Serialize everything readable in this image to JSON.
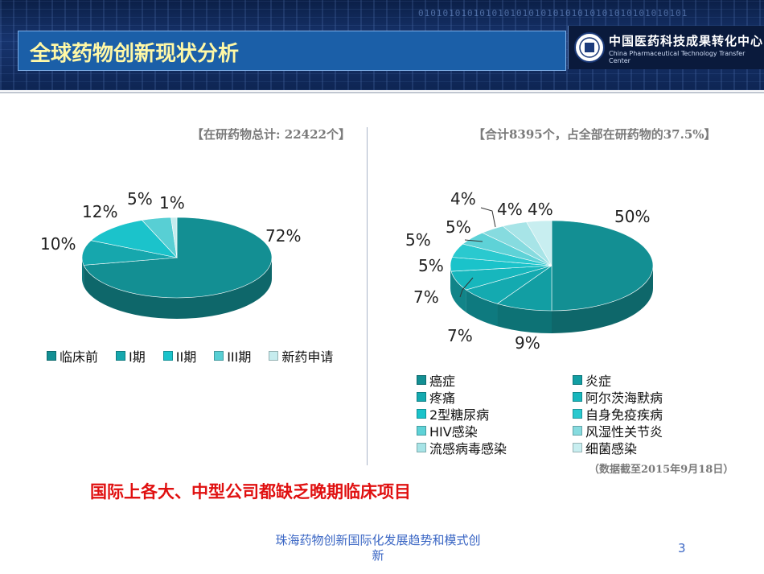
{
  "header": {
    "title": "全球药物创新现状分析",
    "logo_cn": "中国医药科技成果转化中心",
    "logo_en": "China Pharmaceutical Technology Transfer Center",
    "binary": "01010101010101010101010101010101010101010101"
  },
  "left": {
    "caption": "【在研药物总计: 22422个】",
    "chart_data": {
      "type": "pie",
      "categories": [
        "临床前",
        "I期",
        "II期",
        "III期",
        "新药申请"
      ],
      "values": [
        72,
        10,
        12,
        5,
        1
      ],
      "data_labels": [
        "72%",
        "10%",
        "12%",
        "5%",
        "1%"
      ],
      "legend_placement": "bottom"
    }
  },
  "right": {
    "caption": "【合计8395个，占全部在研药物的37.5%】",
    "chart_data": {
      "type": "pie",
      "categories": [
        "癌症",
        "炎症",
        "疼痛",
        "阿尔茨海默病",
        "2型糖尿病",
        "自身免疫疾病",
        "HIV感染",
        "风湿性关节炎",
        "流感病毒感染",
        "细菌感染"
      ],
      "values": [
        50,
        9,
        7,
        7,
        5,
        5,
        5,
        4,
        4,
        4
      ],
      "data_labels": [
        "50%",
        "9%",
        "7%",
        "7%",
        "5%",
        "5%",
        "5%",
        "4%",
        "4%",
        "4%"
      ],
      "legend_placement": "bottom"
    },
    "note": "（数据截至2015年9月18日）"
  },
  "colors": {
    "slices": [
      "#138f93",
      "#16a7ad",
      "#1bc3cb",
      "#58cfd4",
      "#c6ecee"
    ],
    "right_slices": [
      "#138f93",
      "#129ea3",
      "#14aab0",
      "#17b7bd",
      "#1ac3ca",
      "#2ac9cf",
      "#5ed2d7",
      "#86dbdf",
      "#a7e4e7",
      "#c8eef0"
    ]
  },
  "message": "国际上各大、中型公司都缺乏晚期临床项目",
  "footer": {
    "line1": "珠海药物创新国际化发展趋势和模式创",
    "line2": "新",
    "page": "3"
  }
}
